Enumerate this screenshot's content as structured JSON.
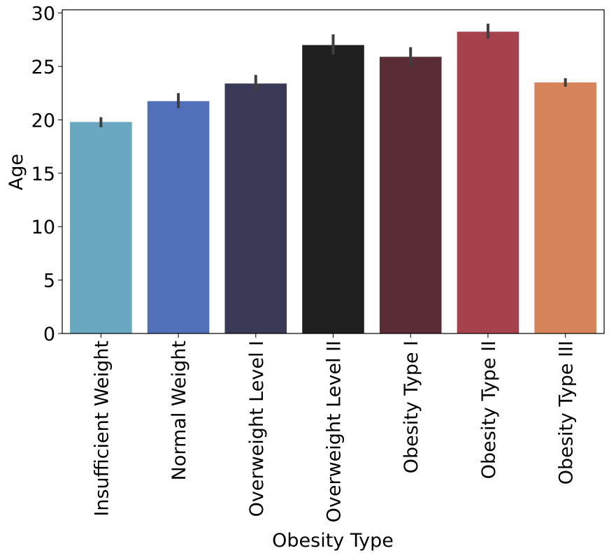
{
  "chart_data": {
    "type": "bar",
    "title": "",
    "xlabel": "Obesity Type",
    "ylabel": "Age",
    "ylim": [
      0,
      30.3
    ],
    "yticks": [
      0,
      5,
      10,
      15,
      20,
      25,
      30
    ],
    "grid": false,
    "categories": [
      "Insufficient Weight",
      "Normal Weight",
      "Overweight Level I",
      "Overweight Level II",
      "Obesity Type I",
      "Obesity Type II",
      "Obesity Type III"
    ],
    "values": [
      19.8,
      21.75,
      23.4,
      27.0,
      25.9,
      28.25,
      23.5
    ],
    "error_low": [
      19.3,
      21.1,
      22.7,
      26.1,
      25.0,
      27.6,
      23.1
    ],
    "error_high": [
      20.25,
      22.5,
      24.2,
      28.0,
      26.8,
      29.0,
      23.9
    ],
    "colors": [
      "#6aa8c1",
      "#5170ba",
      "#3a3a57",
      "#1f1f1f",
      "#5a2c35",
      "#a6424c",
      "#d7845a"
    ],
    "error_color": "#3f3f3f"
  }
}
